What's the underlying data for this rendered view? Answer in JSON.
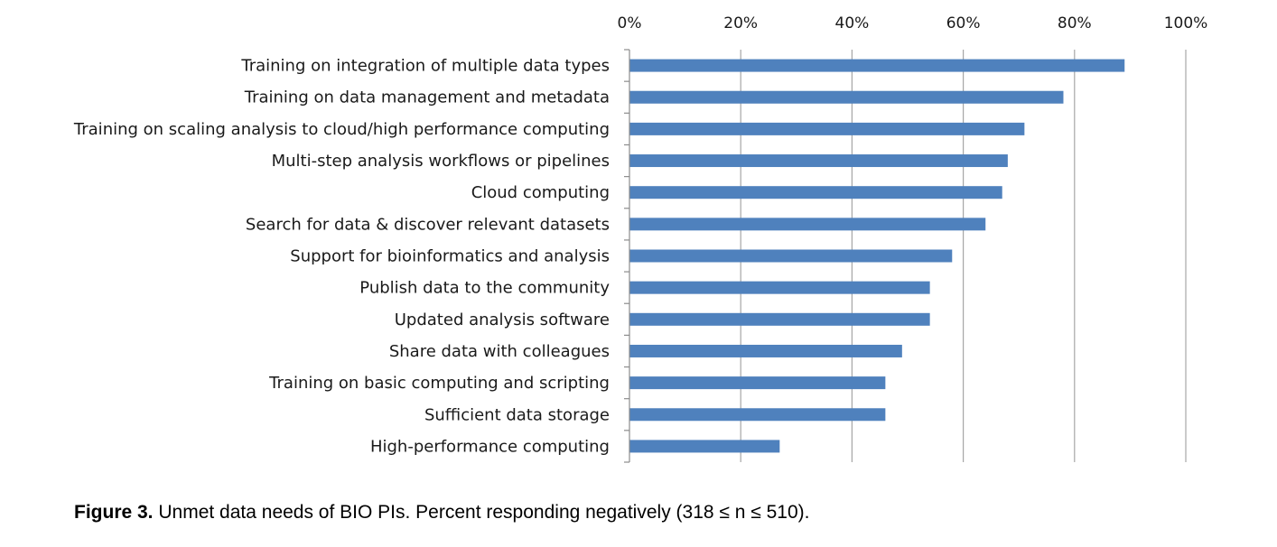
{
  "colors": {
    "bar": "#4f81bd",
    "grid": "#a6a6a6",
    "axis": "#8c8c8c"
  },
  "caption": {
    "label": "Figure 3.",
    "text": " Unmet data needs of BIO PIs. Percent responding negatively (318 ≤ n ≤ 510)."
  },
  "chart_data": {
    "type": "bar",
    "orientation": "horizontal",
    "categories": [
      "Training on integration of multiple data types",
      "Training on data management and metadata",
      "Training on scaling analysis to cloud/high performance computing",
      "Multi-step analysis workflows or pipelines",
      "Cloud computing",
      "Search for data & discover relevant datasets",
      "Support for bioinformatics and analysis",
      "Publish data to the community",
      "Updated analysis software",
      "Share data with colleagues",
      "Training on basic computing and scripting",
      "Sufficient data storage",
      "High-performance computing"
    ],
    "values": [
      89,
      78,
      71,
      68,
      67,
      64,
      58,
      54,
      54,
      49,
      46,
      46,
      27
    ],
    "xlim": [
      0,
      100
    ],
    "ticks": [
      0,
      20,
      40,
      60,
      80,
      100
    ],
    "tick_labels": [
      "0%",
      "20%",
      "40%",
      "60%",
      "80%",
      "100%"
    ],
    "axis_position": "top",
    "grid": true,
    "legend": "none"
  }
}
